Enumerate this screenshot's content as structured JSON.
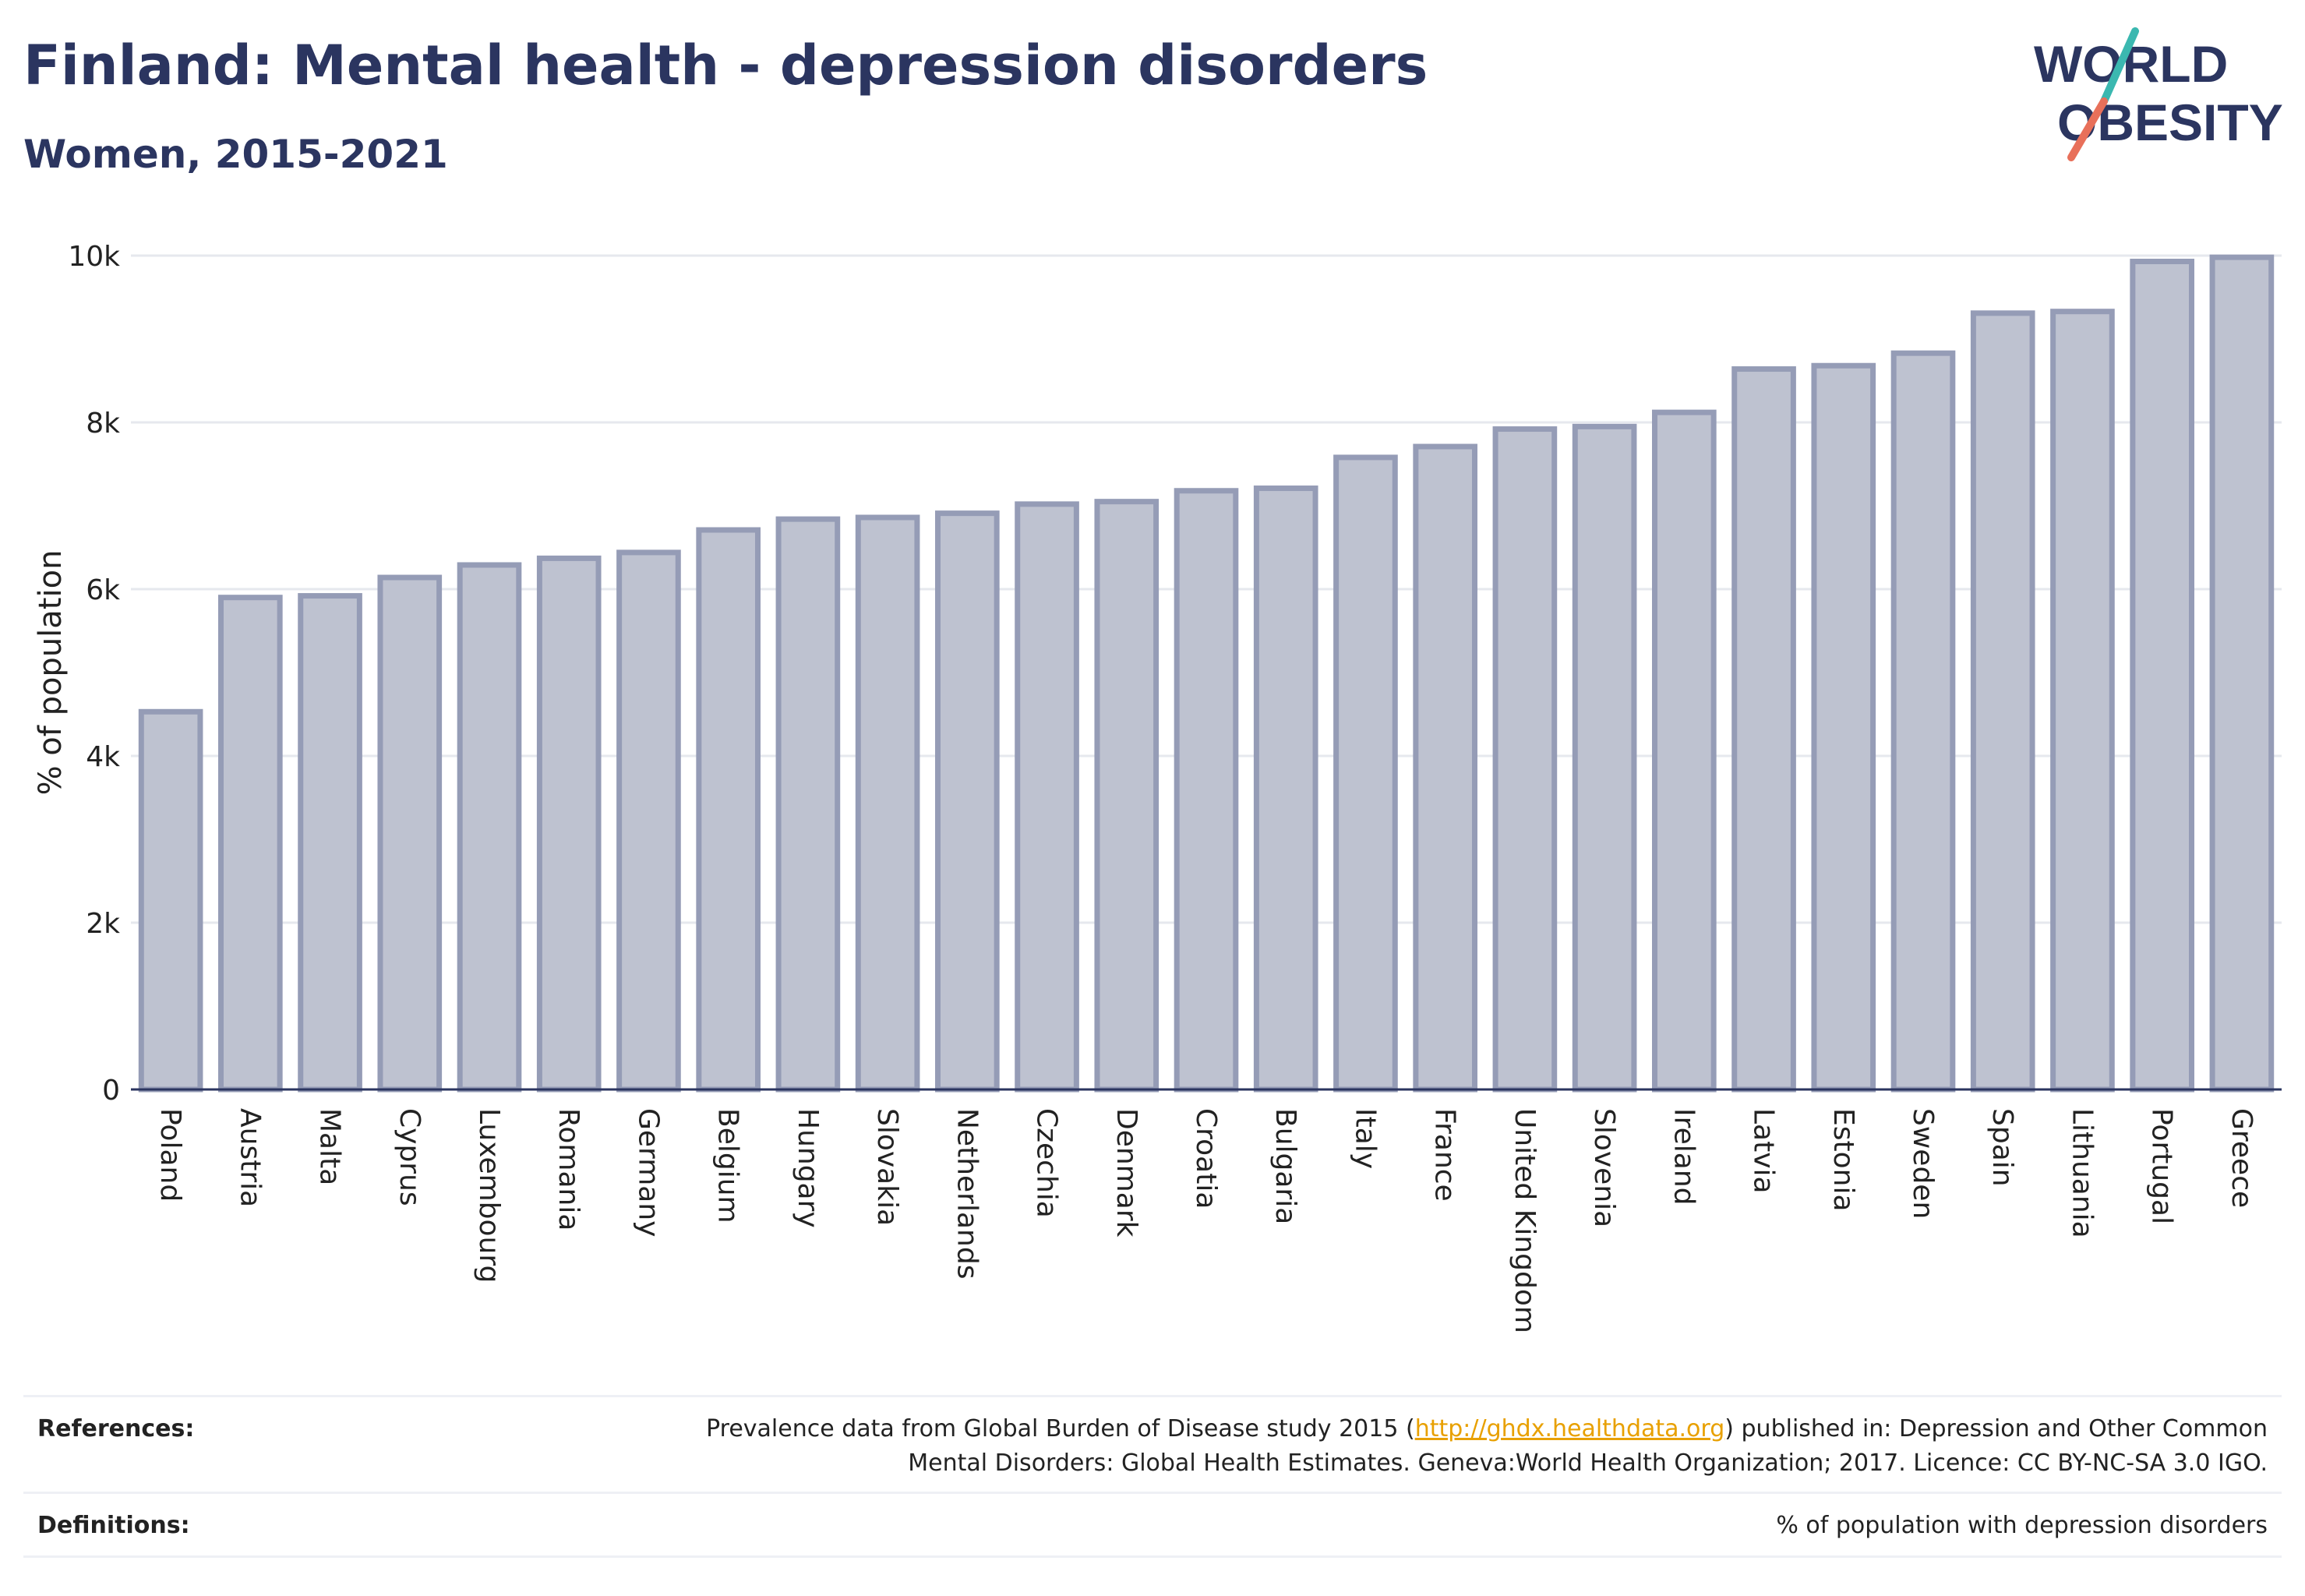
{
  "header": {
    "title": "Finland: Mental health - depression disorders",
    "subtitle": "Women, 2015-2021"
  },
  "logo": {
    "line1": "WORLD",
    "line2": "OBESITY",
    "colors": {
      "text": "#2b3560",
      "slash_top": "#3bb8b0",
      "slash_bottom": "#e8705a"
    }
  },
  "chart_data": {
    "type": "bar",
    "title": "",
    "xlabel": "",
    "ylabel": "% of population",
    "ylim": [
      0,
      10000
    ],
    "yticks": [
      0,
      2000,
      4000,
      6000,
      8000,
      10000
    ],
    "ytick_labels": [
      "0",
      "2k",
      "4k",
      "6k",
      "8k",
      "10k"
    ],
    "grid": true,
    "colors": {
      "bar_fill": "#bec2d0",
      "bar_stroke": "#959cb6",
      "grid": "#e6e8ee",
      "axis": "#2b3560"
    },
    "categories": [
      "Poland",
      "Austria",
      "Malta",
      "Cyprus",
      "Luxembourg",
      "Romania",
      "Germany",
      "Belgium",
      "Hungary",
      "Slovakia",
      "Netherlands",
      "Czechia",
      "Denmark",
      "Croatia",
      "Bulgaria",
      "Italy",
      "France",
      "United Kingdom",
      "Slovenia",
      "Ireland",
      "Latvia",
      "Estonia",
      "Sweden",
      "Spain",
      "Lithuania",
      "Portugal",
      "Greece"
    ],
    "values": [
      4530,
      5900,
      5920,
      6140,
      6290,
      6370,
      6440,
      6710,
      6840,
      6860,
      6910,
      7020,
      7050,
      7180,
      7210,
      7580,
      7710,
      7920,
      7950,
      8120,
      8640,
      8680,
      8830,
      9310,
      9330,
      9930,
      9980
    ]
  },
  "footer": {
    "references_label": "References:",
    "references_text_before": "Prevalence data from Global Burden of Disease study 2015 (",
    "references_link": "http://ghdx.healthdata.org",
    "references_text_after": ") published in: Depression and Other Common",
    "references_text_line2": "Mental Disorders: Global Health Estimates. Geneva:World Health Organization; 2017. Licence: CC BY-NC-SA 3.0 IGO.",
    "definitions_label": "Definitions:",
    "definitions_text": "% of population with depression disorders"
  }
}
